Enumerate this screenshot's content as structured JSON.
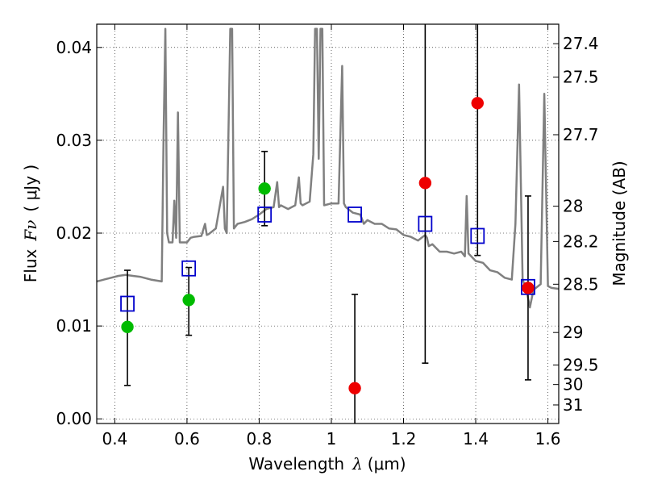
{
  "chart_data": {
    "type": "scatter",
    "title": "",
    "xlabel_text": "Wavelength",
    "xlabel_symbol": "λ",
    "xlabel_unit": "(μm)",
    "ylabel_text": "Flux",
    "ylabel_symbol": "Fν",
    "ylabel_unit": "( μJy )",
    "ylabel_right": "Magnitude (AB)",
    "xlim": [
      0.35,
      1.63
    ],
    "ylim": [
      -0.0005,
      0.0425
    ],
    "grid": true,
    "x_ticks": [
      {
        "value": 0.4,
        "label": "0.4"
      },
      {
        "value": 0.6,
        "label": "0.6"
      },
      {
        "value": 0.8,
        "label": "0.8"
      },
      {
        "value": 1.0,
        "label": "1"
      },
      {
        "value": 1.2,
        "label": "1.2"
      },
      {
        "value": 1.4,
        "label": "1.4"
      },
      {
        "value": 1.6,
        "label": "1.6"
      }
    ],
    "y_ticks": [
      {
        "value": 0.0,
        "label": "0.00"
      },
      {
        "value": 0.01,
        "label": "0.01"
      },
      {
        "value": 0.02,
        "label": "0.02"
      },
      {
        "value": 0.03,
        "label": "0.03"
      },
      {
        "value": 0.04,
        "label": "0.04"
      }
    ],
    "mag_ticks": [
      {
        "flux": 0.0404,
        "label": "27.4"
      },
      {
        "flux": 0.0368,
        "label": "27.5"
      },
      {
        "flux": 0.0306,
        "label": "27.7"
      },
      {
        "flux": 0.0229,
        "label": "28"
      },
      {
        "flux": 0.0191,
        "label": "28.2"
      },
      {
        "flux": 0.0145,
        "label": "28.5"
      },
      {
        "flux": 0.0093,
        "label": "29"
      },
      {
        "flux": 0.0058,
        "label": "29.5"
      },
      {
        "flux": 0.0037,
        "label": "30"
      },
      {
        "flux": 0.0015,
        "label": "31"
      }
    ],
    "series": [
      {
        "name": "model_spectrum",
        "style": "line",
        "color": "#808080",
        "x": [
          0.35,
          0.37,
          0.39,
          0.41,
          0.43,
          0.45,
          0.47,
          0.5,
          0.53,
          0.535,
          0.54,
          0.545,
          0.55,
          0.56,
          0.565,
          0.57,
          0.575,
          0.58,
          0.59,
          0.6,
          0.61,
          0.62,
          0.64,
          0.65,
          0.655,
          0.66,
          0.68,
          0.7,
          0.705,
          0.71,
          0.72,
          0.725,
          0.73,
          0.74,
          0.76,
          0.78,
          0.8,
          0.82,
          0.84,
          0.85,
          0.855,
          0.86,
          0.88,
          0.9,
          0.91,
          0.915,
          0.92,
          0.94,
          0.95,
          0.955,
          0.96,
          0.965,
          0.97,
          0.975,
          0.98,
          1.0,
          1.02,
          1.03,
          1.035,
          1.04,
          1.06,
          1.08,
          1.09,
          1.1,
          1.12,
          1.14,
          1.16,
          1.18,
          1.2,
          1.22,
          1.24,
          1.25,
          1.26,
          1.265,
          1.27,
          1.28,
          1.3,
          1.32,
          1.34,
          1.36,
          1.37,
          1.375,
          1.38,
          1.4,
          1.42,
          1.44,
          1.46,
          1.48,
          1.5,
          1.51,
          1.52,
          1.53,
          1.54,
          1.55,
          1.56,
          1.58,
          1.59,
          1.6,
          1.61,
          1.63
        ],
        "y": [
          0.0148,
          0.015,
          0.0152,
          0.0154,
          0.0155,
          0.0154,
          0.0153,
          0.015,
          0.0148,
          0.03,
          0.042,
          0.02,
          0.019,
          0.019,
          0.0235,
          0.0195,
          0.033,
          0.019,
          0.019,
          0.019,
          0.0195,
          0.0196,
          0.0197,
          0.021,
          0.0198,
          0.0199,
          0.0205,
          0.025,
          0.0205,
          0.02,
          0.042,
          0.042,
          0.0205,
          0.021,
          0.0212,
          0.0215,
          0.022,
          0.0226,
          0.0228,
          0.0255,
          0.0228,
          0.023,
          0.0226,
          0.023,
          0.026,
          0.0232,
          0.023,
          0.0234,
          0.0285,
          0.042,
          0.042,
          0.028,
          0.042,
          0.042,
          0.023,
          0.0232,
          0.0232,
          0.038,
          0.0232,
          0.0228,
          0.0222,
          0.022,
          0.021,
          0.0214,
          0.021,
          0.021,
          0.0205,
          0.0204,
          0.0198,
          0.0196,
          0.0192,
          0.0195,
          0.0198,
          0.0195,
          0.0186,
          0.0188,
          0.018,
          0.018,
          0.0178,
          0.018,
          0.0175,
          0.024,
          0.0178,
          0.017,
          0.0168,
          0.016,
          0.0158,
          0.0152,
          0.015,
          0.021,
          0.036,
          0.015,
          0.014,
          0.012,
          0.0139,
          0.0145,
          0.035,
          0.0143,
          0.0141,
          0.014
        ]
      },
      {
        "name": "model_photometry",
        "style": "open-square",
        "color": "#0000cc",
        "x": [
          0.435,
          0.605,
          0.815,
          1.065,
          1.26,
          1.405,
          1.545
        ],
        "y": [
          0.0124,
          0.0162,
          0.022,
          0.022,
          0.021,
          0.0197,
          0.0142
        ]
      },
      {
        "name": "detections",
        "style": "filled-circle",
        "color": "#00bb00",
        "x": [
          0.435,
          0.605,
          0.815
        ],
        "y": [
          0.0099,
          0.0128,
          0.0248
        ]
      },
      {
        "name": "nondetections",
        "style": "filled-circle",
        "color": "#ee0000",
        "x": [
          1.065,
          1.26,
          1.405,
          1.545
        ],
        "y": [
          0.0033,
          0.0254,
          0.034,
          0.0141
        ]
      }
    ],
    "errorbars": [
      {
        "x": 0.435,
        "low": 0.0036,
        "high": 0.016
      },
      {
        "x": 0.605,
        "low": 0.009,
        "high": 0.0163
      },
      {
        "x": 0.815,
        "low": 0.0208,
        "high": 0.0288
      },
      {
        "x": 1.065,
        "low": -0.0005,
        "high": 0.0134
      },
      {
        "x": 1.26,
        "low": 0.006,
        "high": 0.0425
      },
      {
        "x": 1.405,
        "low": 0.0176,
        "high": 0.0425
      },
      {
        "x": 1.545,
        "low": 0.0042,
        "high": 0.024
      }
    ]
  }
}
